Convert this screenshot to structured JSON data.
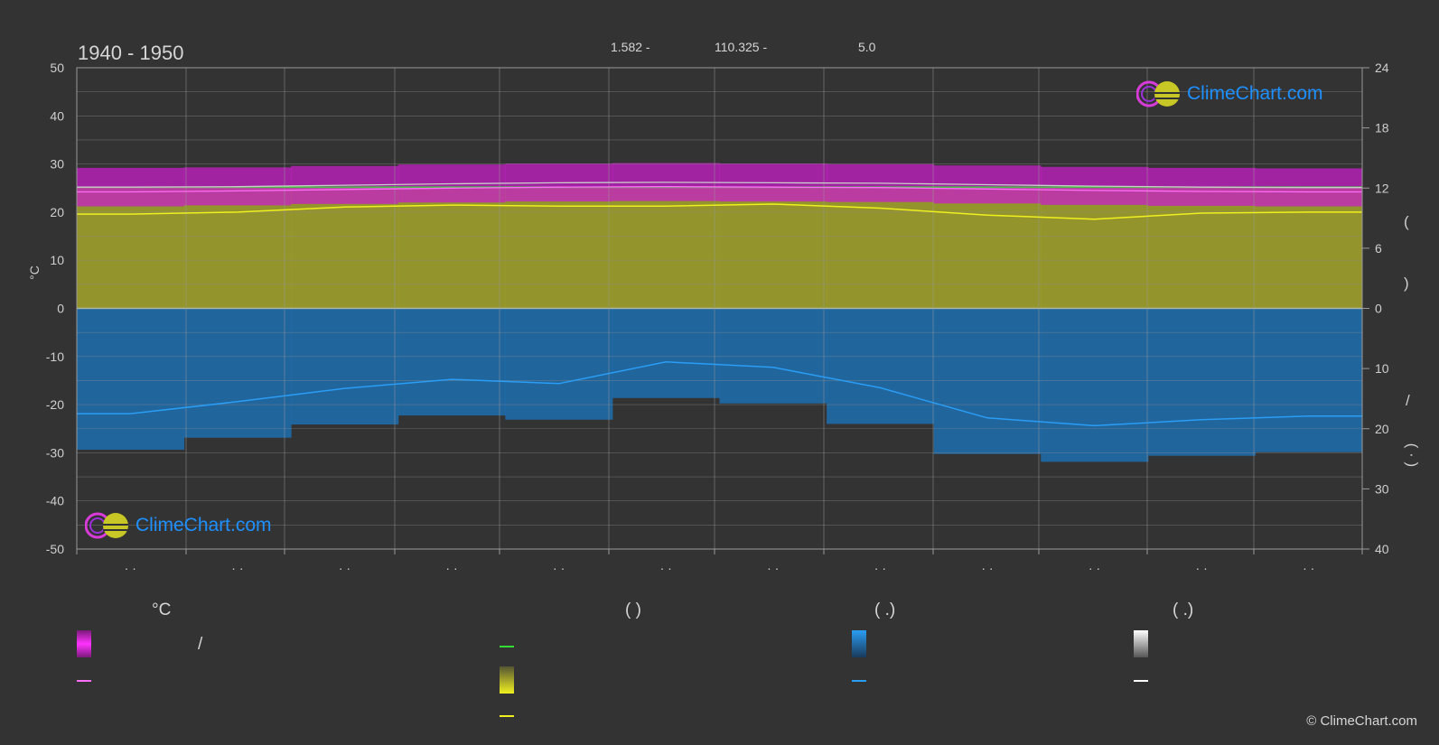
{
  "period": "1940 - 1950",
  "coords": {
    "lat": "1.582 -",
    "lon": "110.325 -",
    "elev": "5.0"
  },
  "copyright": "© ClimeChart.com",
  "logo_text": "ClimeChart.com",
  "y_left_label": "°C",
  "colors": {
    "background": "#333333",
    "temp_band": "#c71fc7",
    "sunshine_band": "#9a9a2c",
    "rain_band": "#1f6fb0",
    "sunshine_line": "#f0f020",
    "rain_line": "#2a9df4",
    "temp_line_max": "#cccccc",
    "temp_line_min": "#ff6ef7",
    "daylight_line": "#33dd33"
  },
  "month_ticks": [
    "· ·",
    "· ·",
    "· ·",
    "· ·",
    "· ·",
    "· ·",
    "· ·",
    "· ·",
    "· ·",
    "· ·",
    "· ·",
    "· ·"
  ],
  "legend": {
    "col1_header": "°C",
    "col2_header": "(          )",
    "col3_header": "(   .)",
    "col4_header": "(   .)",
    "slash": "/"
  },
  "right_axis_marks": [
    "(",
    ")",
    "/",
    "(   ·   )"
  ],
  "chart_data": {
    "type": "area",
    "x": [
      1,
      2,
      3,
      4,
      5,
      6,
      7,
      8,
      9,
      10,
      11,
      12
    ],
    "y_left": {
      "label": "°C",
      "min": -50,
      "max": 50,
      "ticks": [
        50,
        40,
        30,
        20,
        10,
        0,
        -10,
        -20,
        -30,
        -40,
        -50
      ]
    },
    "y_right_top": {
      "min": 0,
      "max": 24,
      "ticks": [
        24,
        18,
        12,
        6,
        0
      ]
    },
    "y_right_bottom": {
      "min": 0,
      "max": 40,
      "ticks": [
        0,
        10,
        20,
        30,
        40
      ]
    },
    "grid": true,
    "series": [
      {
        "key": "temp_max_mean",
        "values": [
          25.2,
          25.3,
          25.6,
          25.9,
          26.1,
          26.2,
          26.1,
          26.0,
          25.7,
          25.4,
          25.2,
          25.1
        ]
      },
      {
        "key": "temp_min_mean",
        "values": [
          24.2,
          24.4,
          24.7,
          25.0,
          25.2,
          25.3,
          25.2,
          25.1,
          24.8,
          24.5,
          24.3,
          24.2
        ]
      },
      {
        "key": "daylight",
        "values": [
          12.1,
          12.1,
          12.1,
          12.1,
          12.1,
          12.1,
          12.1,
          12.1,
          12.1,
          12.1,
          12.1,
          12.1
        ]
      },
      {
        "key": "sunshine",
        "values": [
          9.4,
          9.6,
          10.1,
          10.3,
          10.2,
          10.2,
          10.4,
          10.0,
          9.3,
          8.9,
          9.5,
          9.6
        ]
      },
      {
        "key": "rain",
        "values": [
          17.5,
          15.5,
          13.3,
          11.8,
          12.5,
          8.9,
          9.8,
          13.2,
          18.2,
          19.5,
          18.5,
          17.9
        ]
      }
    ]
  }
}
